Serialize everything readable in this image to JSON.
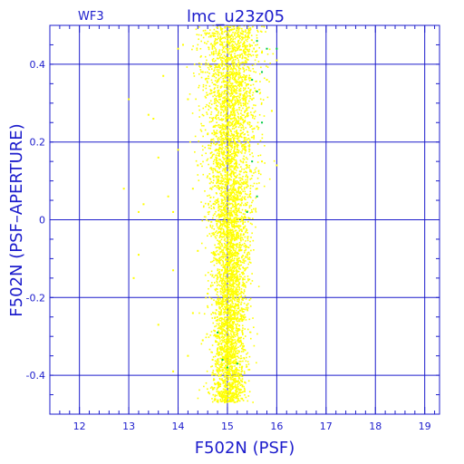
{
  "chart_data": {
    "type": "scatter",
    "title": "lmc_u23z05",
    "subtitle": "WF3",
    "xlabel": "F502N (PSF)",
    "ylabel": "F502N (PSF–APERTURE)",
    "xlim": [
      11.4,
      19.3
    ],
    "ylim": [
      -0.5,
      0.5
    ],
    "xticks": [
      "12",
      "13",
      "14",
      "15",
      "16",
      "17",
      "18",
      "19"
    ],
    "yticks": [
      "-0.4",
      "-0.2",
      "0",
      "0.2",
      "0.4"
    ],
    "grid": true,
    "colors": {
      "frame": "#1c1ccc",
      "grid": "#1c1ccc",
      "points": "#ffff00",
      "highlight_points": "#00cc44"
    },
    "series": [
      {
        "description_role": "main",
        "color": "#ffff00",
        "points": [
          [
            13.0,
            0.31
          ],
          [
            13.1,
            -0.15
          ],
          [
            13.2,
            0.02
          ],
          [
            13.3,
            0.04
          ],
          [
            13.4,
            0.27
          ],
          [
            13.5,
            0.26
          ],
          [
            13.6,
            0.16
          ],
          [
            13.7,
            0.37
          ],
          [
            13.8,
            0.06
          ],
          [
            13.9,
            0.02
          ],
          [
            13.6,
            -0.27
          ],
          [
            13.9,
            -0.39
          ],
          [
            14.0,
            0.44
          ],
          [
            14.0,
            0.18
          ],
          [
            13.9,
            -0.13
          ],
          [
            14.1,
            0.45
          ],
          [
            14.2,
            0.31
          ],
          [
            14.3,
            0.08
          ],
          [
            14.3,
            -0.24
          ],
          [
            14.4,
            0.14
          ],
          [
            14.4,
            -0.08
          ],
          [
            14.5,
            0.38
          ],
          [
            14.5,
            -0.31
          ],
          [
            14.6,
            0.22
          ],
          [
            14.6,
            -0.19
          ],
          [
            14.7,
            0.48
          ],
          [
            14.7,
            -0.36
          ],
          [
            14.8,
            0.05
          ],
          [
            14.8,
            -0.42
          ],
          [
            14.9,
            0.29
          ],
          [
            14.9,
            -0.21
          ],
          [
            15.0,
            0.41
          ],
          [
            15.0,
            -0.45
          ],
          [
            15.0,
            0.12
          ],
          [
            15.1,
            -0.33
          ],
          [
            15.1,
            0.35
          ],
          [
            15.2,
            -0.15
          ],
          [
            15.2,
            0.44
          ],
          [
            15.3,
            -0.26
          ],
          [
            15.3,
            0.19
          ],
          [
            15.4,
            -0.09
          ],
          [
            15.4,
            0.47
          ],
          [
            15.5,
            0.02
          ],
          [
            15.5,
            0.31
          ],
          [
            15.6,
            0.24
          ],
          [
            15.6,
            0.08
          ],
          [
            15.7,
            0.43
          ],
          [
            15.7,
            0.15
          ],
          [
            15.8,
            0.36
          ],
          [
            15.9,
            0.28
          ],
          [
            16.0,
            0.41
          ],
          [
            16.0,
            0.14
          ],
          [
            13.2,
            -0.09
          ],
          [
            12.9,
            0.08
          ],
          [
            14.2,
            -0.35
          ]
        ]
      },
      {
        "description_role": "highlight",
        "color": "#00cc44",
        "points": [
          [
            15.6,
            0.46
          ],
          [
            15.7,
            0.38
          ],
          [
            15.6,
            0.33
          ],
          [
            15.7,
            0.25
          ],
          [
            15.5,
            0.15
          ],
          [
            15.6,
            0.06
          ],
          [
            15.4,
            0.02
          ],
          [
            15.5,
            0.36
          ],
          [
            14.8,
            -0.29
          ],
          [
            14.9,
            -0.36
          ],
          [
            15.0,
            -0.38
          ],
          [
            15.2,
            -0.37
          ],
          [
            15.8,
            0.44
          ],
          [
            16.0,
            0.44
          ]
        ]
      }
    ]
  }
}
